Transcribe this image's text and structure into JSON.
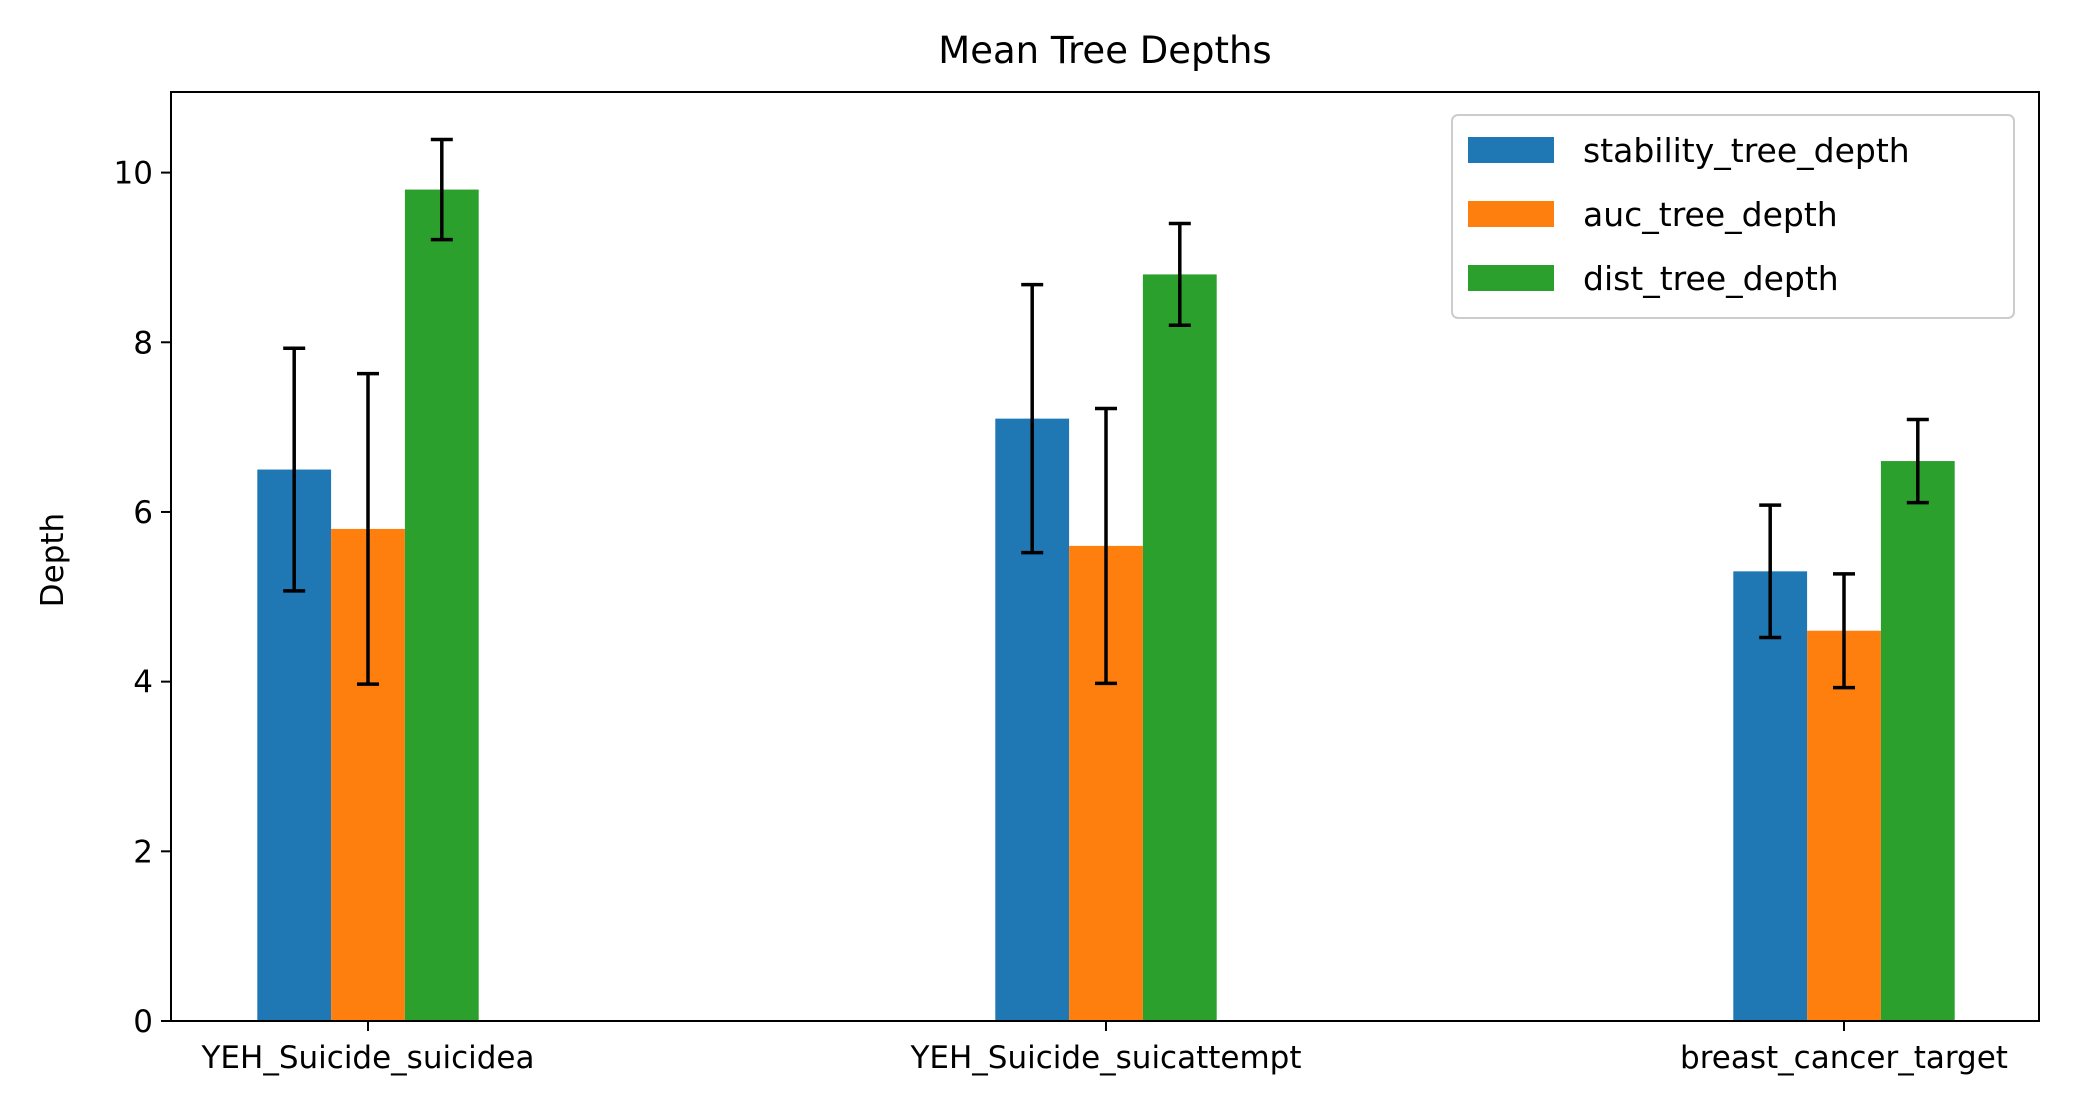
{
  "chart_data": {
    "type": "bar",
    "title": "Mean Tree Depths",
    "xlabel": "",
    "ylabel": "Depth",
    "categories": [
      "YEH_Suicide_suicidea",
      "YEH_Suicide_suicattempt",
      "breast_cancer_target"
    ],
    "ylim": [
      0,
      10.95
    ],
    "yticks": [
      0,
      2,
      4,
      6,
      8,
      10
    ],
    "grid": false,
    "legend_position": "top-right",
    "series": [
      {
        "name": "stability_tree_depth",
        "color": "#1f77b4",
        "values": [
          6.5,
          7.1,
          5.3
        ],
        "errors": [
          1.43,
          1.58,
          0.78
        ]
      },
      {
        "name": "auc_tree_depth",
        "color": "#ff7f0e",
        "values": [
          5.8,
          5.6,
          4.6
        ],
        "errors": [
          1.83,
          1.62,
          0.67
        ]
      },
      {
        "name": "dist_tree_depth",
        "color": "#2ca02c",
        "values": [
          9.8,
          8.8,
          6.6
        ],
        "errors": [
          0.59,
          0.6,
          0.49
        ]
      }
    ]
  }
}
